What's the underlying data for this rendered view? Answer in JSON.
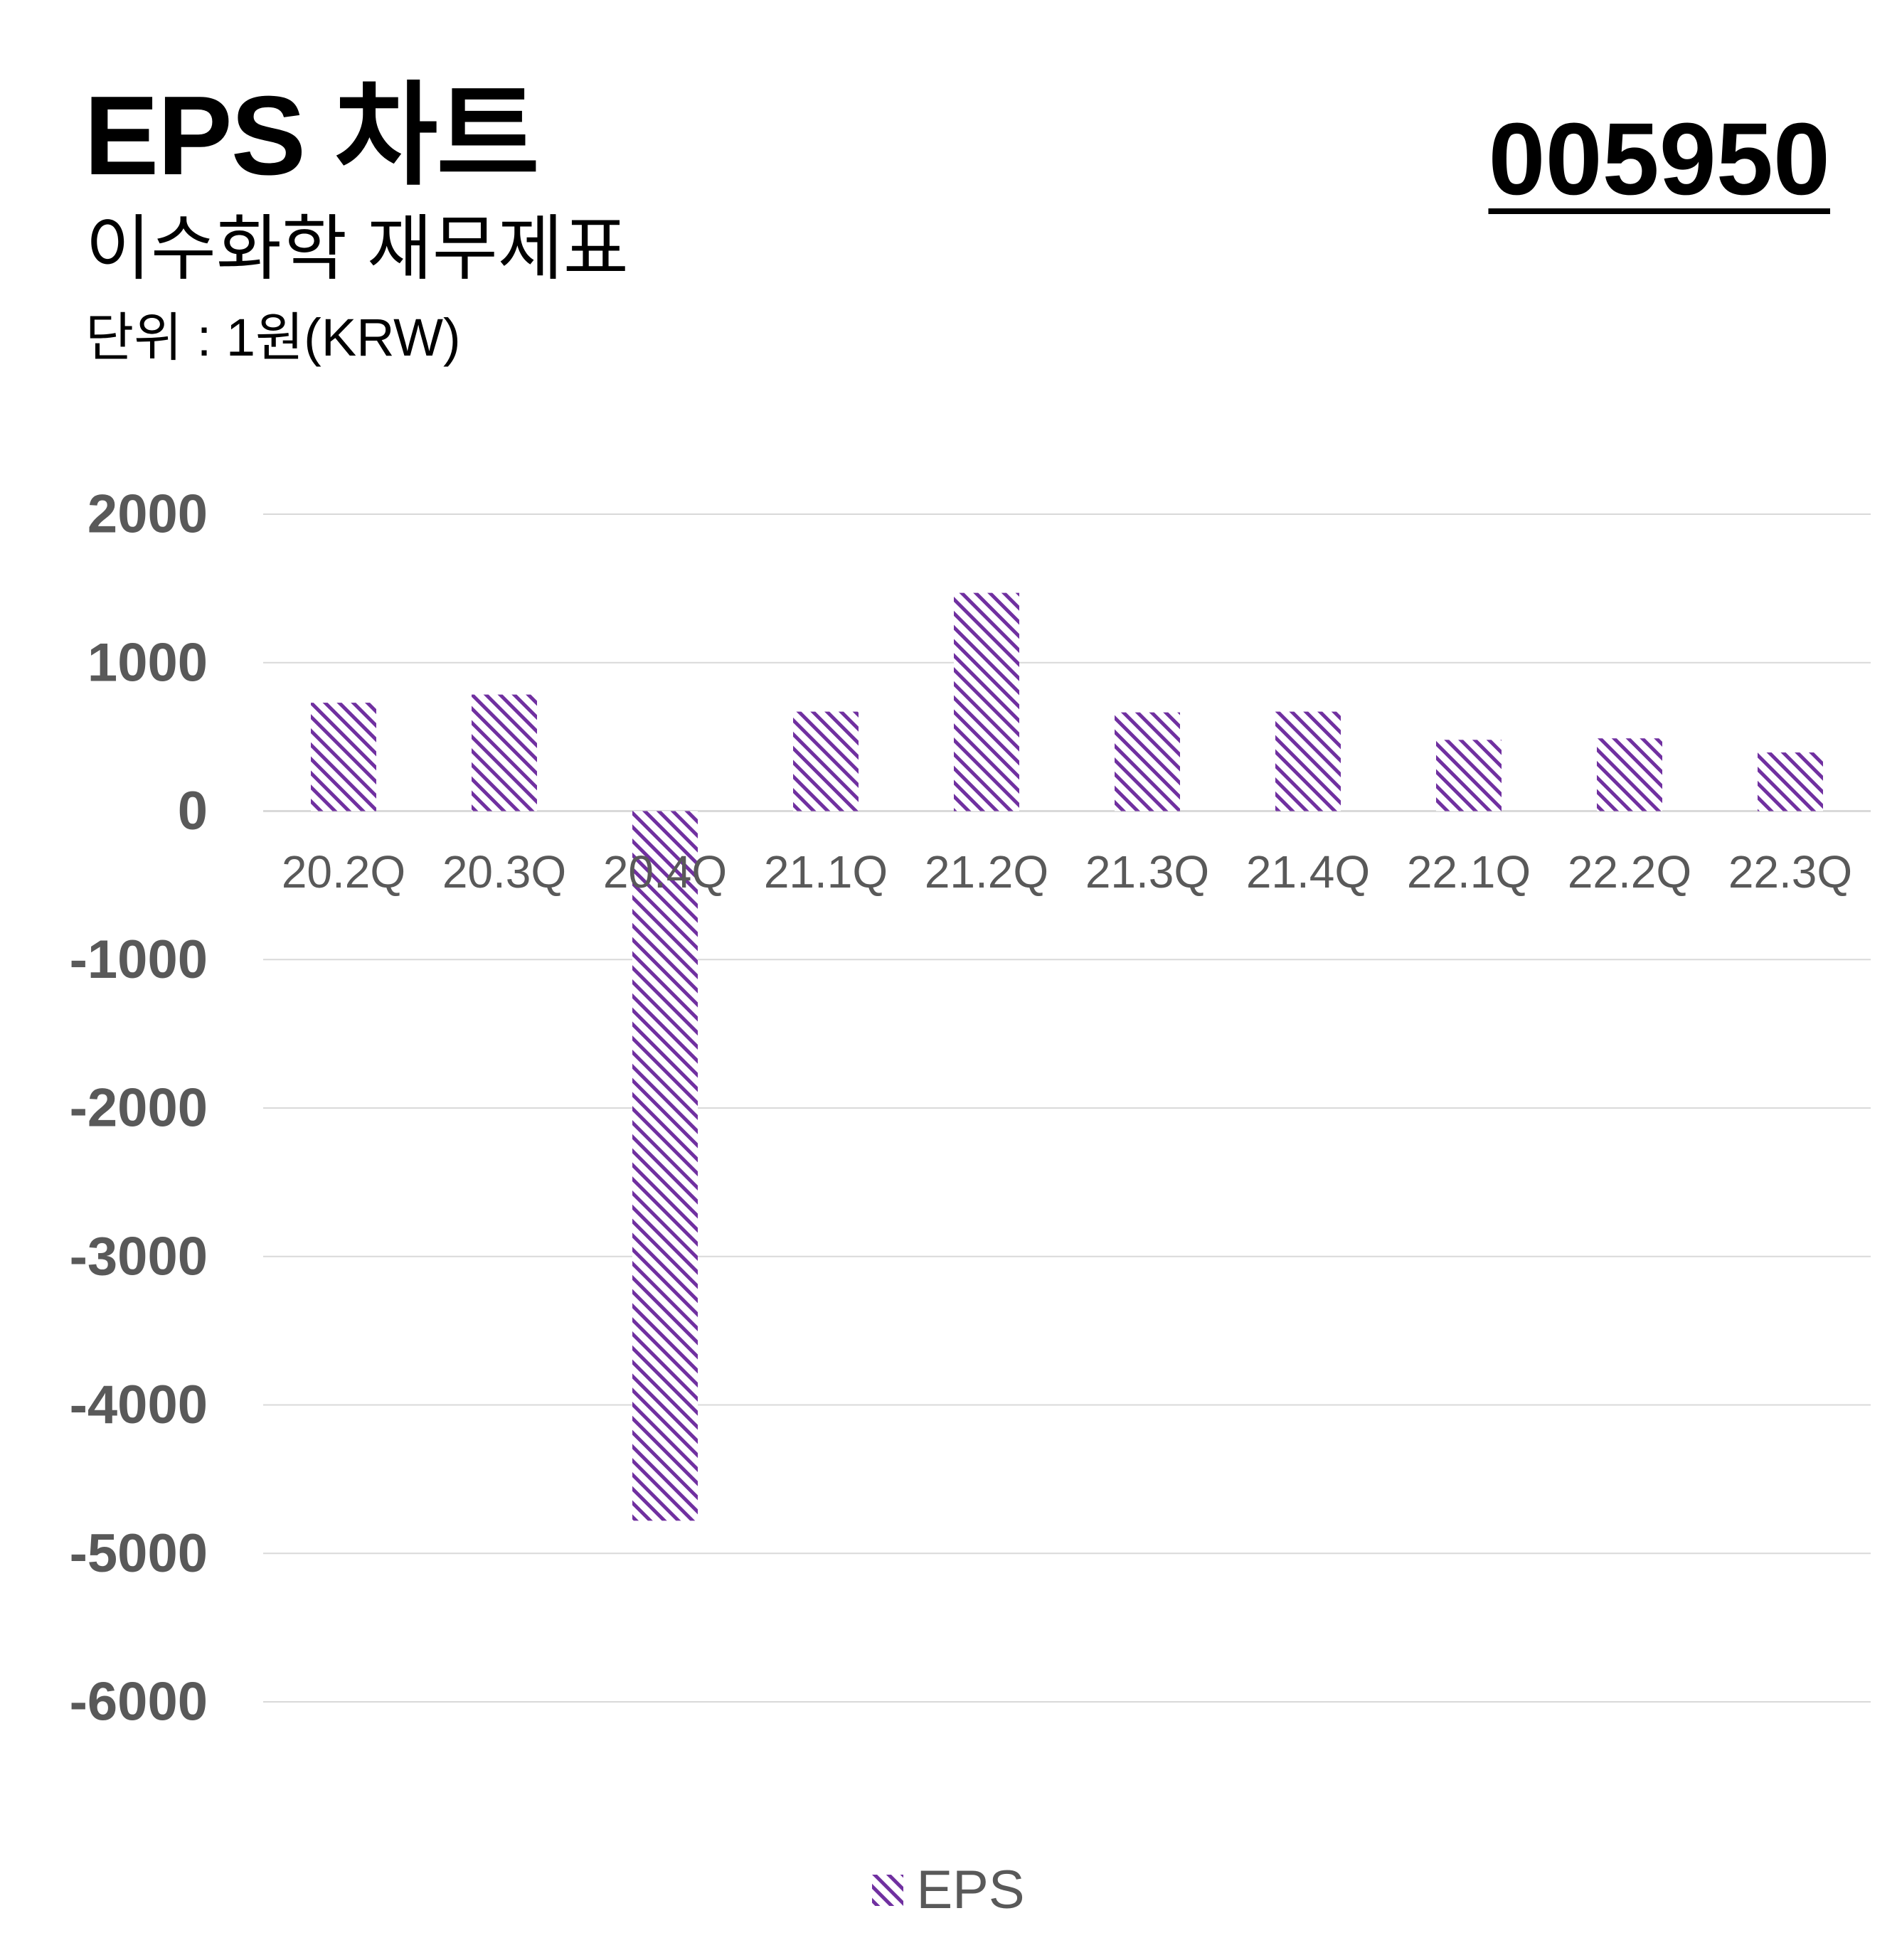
{
  "header": {
    "title": "EPS 차트",
    "subtitle": "이수화학 재무제표",
    "unit": "단위 : 1원(KRW)",
    "code": "005950"
  },
  "colors": {
    "bar": "#7030a0",
    "grid": "#d9d9d9",
    "tick_text": "#595959"
  },
  "chart_data": {
    "type": "bar",
    "title": "EPS 차트",
    "categories": [
      "20.2Q",
      "20.3Q",
      "20.4Q",
      "21.1Q",
      "21.2Q",
      "21.3Q",
      "21.4Q",
      "22.1Q",
      "22.2Q",
      "22.3Q"
    ],
    "series": [
      {
        "name": "EPS",
        "values": [
          730,
          785,
          -4780,
          670,
          1470,
          665,
          670,
          480,
          490,
          395
        ]
      }
    ],
    "ylim": [
      -6000,
      2000
    ],
    "yticks": [
      2000,
      1000,
      0,
      -1000,
      -2000,
      -3000,
      -4000,
      -5000,
      -6000
    ],
    "grid": true,
    "legend": "bottom-center",
    "bar_fill": "diagonal-hatch"
  }
}
